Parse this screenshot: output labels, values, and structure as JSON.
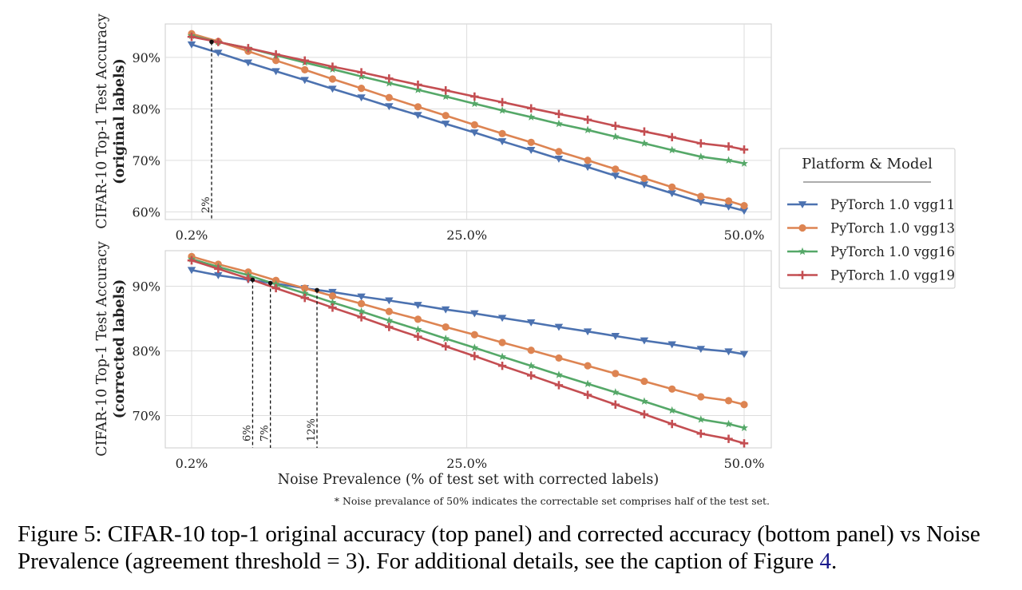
{
  "chart_data": [
    {
      "type": "line",
      "panel": "top",
      "ylabel_line1": "CIFAR-10 Top-1 Test Accuracy",
      "ylabel_line2": "(original labels)",
      "xlabel": "",
      "xlim": [
        0.2,
        50.0
      ],
      "ylim": [
        58.5,
        96.5
      ],
      "xticks": [
        0.2,
        25.0,
        50.0
      ],
      "xtick_labels": [
        "0.2%",
        "25.0%",
        "50.0%"
      ],
      "yticks": [
        60,
        70,
        80,
        90
      ],
      "ytick_labels": [
        "60%",
        "70%",
        "80%",
        "90%"
      ],
      "grid": true,
      "x": [
        0.2,
        2.6,
        5.3,
        7.8,
        10.4,
        12.9,
        15.5,
        18.0,
        20.6,
        23.1,
        25.7,
        28.2,
        30.8,
        33.3,
        35.9,
        38.4,
        41.0,
        43.5,
        46.1,
        48.6,
        50.0
      ],
      "series": [
        {
          "name": "PyTorch 1.0 vgg11",
          "color": "#4c72b0",
          "marker": "triangle-down",
          "values": [
            92.5,
            90.9,
            89.0,
            87.3,
            85.6,
            83.9,
            82.2,
            80.5,
            78.8,
            77.1,
            75.4,
            73.7,
            72.0,
            70.3,
            68.7,
            67.0,
            65.3,
            63.6,
            61.9,
            61.0,
            60.2
          ]
        },
        {
          "name": "PyTorch 1.0 vgg13",
          "color": "#dd8452",
          "marker": "circle",
          "values": [
            94.6,
            93.1,
            91.2,
            89.4,
            87.6,
            85.8,
            84.0,
            82.2,
            80.4,
            78.7,
            76.9,
            75.2,
            73.5,
            71.7,
            70.0,
            68.3,
            66.5,
            64.8,
            63.0,
            62.1,
            61.2
          ]
        },
        {
          "name": "PyTorch 1.0 vgg16",
          "color": "#55a868",
          "marker": "star",
          "values": [
            94.2,
            93.0,
            91.8,
            90.4,
            89.0,
            87.7,
            86.3,
            85.0,
            83.7,
            82.4,
            81.0,
            79.7,
            78.4,
            77.1,
            75.9,
            74.6,
            73.3,
            72.0,
            70.7,
            70.0,
            69.4
          ]
        },
        {
          "name": "PyTorch 1.0 vgg19",
          "color": "#c44e52",
          "marker": "plus",
          "values": [
            94.0,
            93.0,
            91.8,
            90.6,
            89.4,
            88.2,
            87.1,
            85.9,
            84.7,
            83.6,
            82.4,
            81.3,
            80.1,
            79.0,
            77.9,
            76.7,
            75.6,
            74.5,
            73.3,
            72.7,
            72.1
          ]
        }
      ],
      "crossovers": [
        {
          "x": 2.0,
          "y": 93.0,
          "label": "2%"
        }
      ]
    },
    {
      "type": "line",
      "panel": "bottom",
      "ylabel_line1": "CIFAR-10 Top-1 Test Accuracy",
      "ylabel_line2": "(corrected labels)",
      "xlabel": "Noise Prevalence (% of test set with corrected labels)",
      "xlim": [
        0.2,
        50.0
      ],
      "ylim": [
        65,
        95.5
      ],
      "xticks": [
        0.2,
        25.0,
        50.0
      ],
      "xtick_labels": [
        "0.2%",
        "25.0%",
        "50.0%"
      ],
      "yticks": [
        70,
        80,
        90
      ],
      "ytick_labels": [
        "70%",
        "80%",
        "90%"
      ],
      "grid": true,
      "x": [
        0.2,
        2.6,
        5.3,
        7.8,
        10.4,
        12.9,
        15.5,
        18.0,
        20.6,
        23.1,
        25.7,
        28.2,
        30.8,
        33.3,
        35.9,
        38.4,
        41.0,
        43.5,
        46.1,
        48.6,
        50.0
      ],
      "series": [
        {
          "name": "PyTorch 1.0 vgg11",
          "color": "#4c72b0",
          "marker": "triangle-down",
          "values": [
            92.5,
            91.7,
            91.0,
            90.4,
            89.7,
            89.1,
            88.4,
            87.8,
            87.1,
            86.4,
            85.8,
            85.1,
            84.4,
            83.7,
            83.0,
            82.3,
            81.6,
            81.0,
            80.3,
            79.9,
            79.5
          ]
        },
        {
          "name": "PyTorch 1.0 vgg13",
          "color": "#dd8452",
          "marker": "circle",
          "values": [
            94.6,
            93.4,
            92.2,
            90.9,
            89.7,
            88.5,
            87.3,
            86.1,
            84.9,
            83.7,
            82.5,
            81.3,
            80.1,
            78.9,
            77.7,
            76.5,
            75.3,
            74.1,
            72.9,
            72.3,
            71.7
          ]
        },
        {
          "name": "PyTorch 1.0 vgg16",
          "color": "#55a868",
          "marker": "star",
          "values": [
            94.2,
            93.0,
            91.7,
            90.3,
            88.9,
            87.5,
            86.1,
            84.7,
            83.3,
            81.9,
            80.5,
            79.1,
            77.7,
            76.3,
            74.9,
            73.6,
            72.2,
            70.8,
            69.4,
            68.7,
            68.1
          ]
        },
        {
          "name": "PyTorch 1.0 vgg19",
          "color": "#c44e52",
          "marker": "plus",
          "values": [
            94.0,
            92.7,
            91.2,
            89.7,
            88.2,
            86.7,
            85.2,
            83.7,
            82.2,
            80.7,
            79.2,
            77.7,
            76.2,
            74.7,
            73.2,
            71.7,
            70.2,
            68.7,
            67.2,
            66.4,
            65.7
          ]
        }
      ],
      "crossovers": [
        {
          "x": 5.7,
          "y": 91.0,
          "label": "6%"
        },
        {
          "x": 7.3,
          "y": 90.5,
          "label": "7%"
        },
        {
          "x": 11.5,
          "y": 89.4,
          "label": "12%"
        }
      ]
    }
  ],
  "legend": {
    "title": "Platform & Model",
    "placement": "right, between panels",
    "entries": [
      "PyTorch 1.0 vgg11",
      "PyTorch 1.0 vgg13",
      "PyTorch 1.0 vgg16",
      "PyTorch 1.0 vgg19"
    ]
  },
  "footnote": "* Noise prevalance of 50% indicates the correctable set comprises half of the test set.",
  "caption": {
    "text_before_ref": "Figure 5: CIFAR-10 top-1 original accuracy (top panel) and corrected accuracy (bottom panel) vs Noise Prevalence (agreement threshold = 3). For additional details, see the caption of Figure ",
    "ref": "4",
    "text_after_ref": "."
  }
}
